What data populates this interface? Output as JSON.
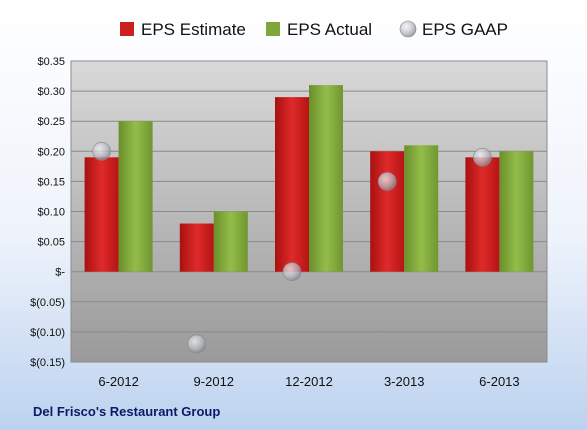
{
  "chart_data": {
    "type": "bar",
    "categories": [
      "6-2012",
      "9-2012",
      "12-2012",
      "3-2013",
      "6-2013"
    ],
    "series": [
      {
        "name": "EPS Estimate",
        "values": [
          0.19,
          0.08,
          0.29,
          0.2,
          0.19
        ],
        "color": "#cc1f1f",
        "kind": "bar"
      },
      {
        "name": "EPS Actual",
        "values": [
          0.25,
          0.1,
          0.31,
          0.21,
          0.2
        ],
        "color": "#7fa63a",
        "kind": "bar"
      },
      {
        "name": "EPS GAAP",
        "values": [
          0.2,
          -0.12,
          0.0,
          0.15,
          0.19
        ],
        "color": "#c9ccd4",
        "kind": "marker"
      }
    ],
    "yticks": [
      0.35,
      0.3,
      0.25,
      0.2,
      0.15,
      0.1,
      0.05,
      0,
      -0.05,
      -0.1,
      -0.15
    ],
    "ytick_labels": [
      "$0.35",
      "$0.30",
      "$0.25",
      "$0.20",
      "$0.15",
      "$0.10",
      "$0.05",
      "$-",
      "$(0.05)",
      "$(0.10)",
      "$(0.15)"
    ],
    "ylim": [
      -0.15,
      0.35
    ],
    "grid": true,
    "legend_position": "top",
    "footer": "Del Frisco's Restaurant Group"
  }
}
